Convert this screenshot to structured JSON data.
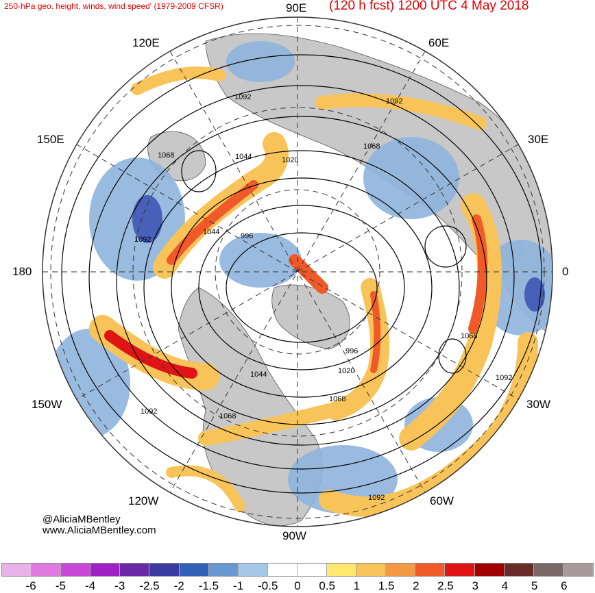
{
  "header": {
    "title_left": "250-hPa geo. height, winds, wind speed' (1979-2009 CFSR)",
    "title_right": "(120 h fcst) 1200 UTC 4 May 2018"
  },
  "map": {
    "projection": "north polar stereographic",
    "longitude_labels": {
      "top": "90E",
      "e120": "120E",
      "e60": "60E",
      "e150": "150E",
      "e30": "30E",
      "left": "180",
      "right": "0",
      "w150": "150W",
      "w30": "30W",
      "w120": "120W",
      "w60": "60W",
      "bottom": "90W"
    },
    "contour_labels": [
      "1092",
      "1092",
      "1068",
      "1044",
      "1020",
      "1068",
      "1092",
      "1044",
      "996",
      "1068",
      "1092",
      "996",
      "1020",
      "1044",
      "1068",
      "1092",
      "1068",
      "1092"
    ],
    "colors": {
      "land": "#c8c8c8",
      "positive_anomaly": "#f05a28",
      "negative_anomaly": "#5b86c5"
    }
  },
  "credits": {
    "handle": "@AliciaMBentley",
    "website": "www.AliciaMBentley.com"
  },
  "colorbar": {
    "colors": [
      "#e8b4e8",
      "#e07ae0",
      "#c848d8",
      "#a020c8",
      "#6a2aa8",
      "#3a3aa0",
      "#3060b8",
      "#6a98d0",
      "#a6c8e8",
      "#ffffff",
      "#ffffff",
      "#ffe870",
      "#f8c45a",
      "#f49a46",
      "#f05a28",
      "#e01414",
      "#a00000",
      "#6a2a2a",
      "#786868",
      "#a89a9a"
    ],
    "ticks": [
      "-6",
      "-5",
      "-4",
      "-3",
      "-2.5",
      "-2",
      "-1.5",
      "-1",
      "-0.5",
      "0",
      "0.5",
      "1",
      "1.5",
      "2",
      "2.5",
      "3",
      "4",
      "5",
      "6"
    ]
  }
}
